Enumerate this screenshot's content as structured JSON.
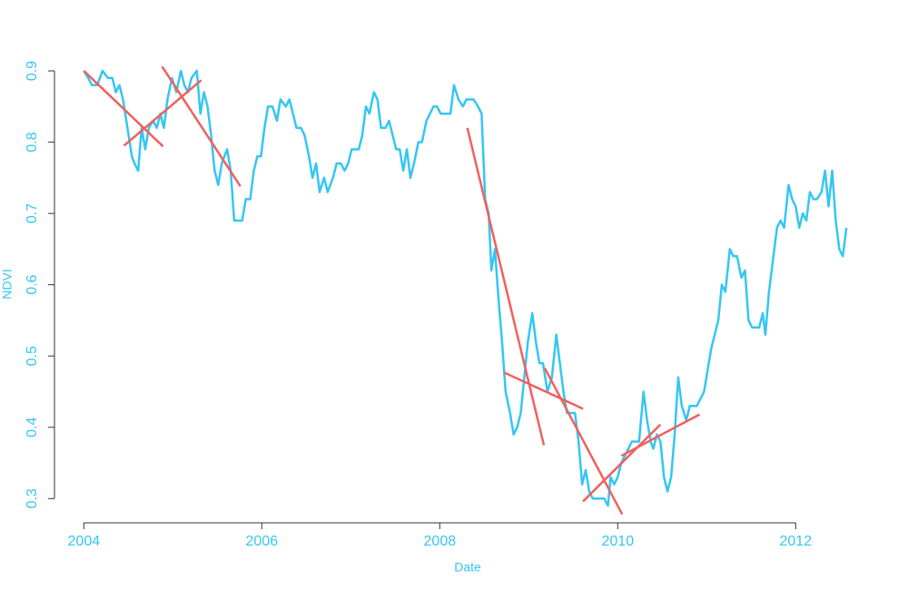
{
  "chart_data": {
    "type": "line",
    "x_label": "Date",
    "y_label": "NDVI",
    "xlim": [
      2003.67,
      2012.65
    ],
    "ylim": [
      0.266,
      0.923
    ],
    "xticks": [
      2004,
      2006,
      2008,
      2010,
      2012
    ],
    "yticks": [
      0.3,
      0.4,
      0.5,
      0.6,
      0.7,
      0.8,
      0.9
    ],
    "text_color": "#35c6f2",
    "series": [
      {
        "color": "#35c6f2",
        "x": [
          2004.0,
          2004.05,
          2004.09,
          2004.15,
          2004.21,
          2004.27,
          2004.32,
          2004.36,
          2004.4,
          2004.44,
          2004.49,
          2004.54,
          2004.57,
          2004.61,
          2004.65,
          2004.69,
          2004.73,
          2004.78,
          2004.82,
          2004.86,
          2004.9,
          2004.94,
          2004.99,
          2005.04,
          2005.09,
          2005.13,
          2005.17,
          2005.21,
          2005.27,
          2005.31,
          2005.35,
          2005.39,
          2005.43,
          2005.47,
          2005.51,
          2005.55,
          2005.61,
          2005.65,
          2005.69,
          2005.78,
          2005.82,
          2005.87,
          2005.91,
          2005.95,
          2005.99,
          2006.03,
          2006.07,
          2006.12,
          2006.17,
          2006.21,
          2006.27,
          2006.31,
          2006.35,
          2006.39,
          2006.44,
          2006.48,
          2006.53,
          2006.57,
          2006.61,
          2006.65,
          2006.7,
          2006.74,
          2006.8,
          2006.84,
          2006.89,
          2006.93,
          2006.97,
          2007.01,
          2007.09,
          2007.13,
          2007.17,
          2007.21,
          2007.26,
          2007.3,
          2007.34,
          2007.39,
          2007.43,
          2007.47,
          2007.51,
          2007.55,
          2007.59,
          2007.63,
          2007.67,
          2007.71,
          2007.76,
          2007.8,
          2007.85,
          2007.89,
          2007.93,
          2007.97,
          2008.01,
          2008.07,
          2008.12,
          2008.16,
          2008.21,
          2008.26,
          2008.3,
          2008.38,
          2008.43,
          2008.47,
          2008.51,
          2008.55,
          2008.58,
          2008.62,
          2008.66,
          2008.7,
          2008.74,
          2008.79,
          2008.83,
          2008.87,
          2008.91,
          2008.95,
          2008.99,
          2009.04,
          2009.08,
          2009.12,
          2009.16,
          2009.21,
          2009.26,
          2009.31,
          2009.35,
          2009.39,
          2009.43,
          2009.48,
          2009.52,
          2009.56,
          2009.6,
          2009.64,
          2009.68,
          2009.72,
          2009.81,
          2009.85,
          2009.89,
          2009.92,
          2009.96,
          2010.0,
          2010.04,
          2010.08,
          2010.12,
          2010.16,
          2010.24,
          2010.29,
          2010.33,
          2010.37,
          2010.4,
          2010.44,
          2010.48,
          2010.52,
          2010.56,
          2010.6,
          2010.64,
          2010.68,
          2010.72,
          2010.77,
          2010.81,
          2010.89,
          2010.93,
          2010.97,
          2011.01,
          2011.05,
          2011.09,
          2011.13,
          2011.17,
          2011.21,
          2011.26,
          2011.3,
          2011.34,
          2011.39,
          2011.43,
          2011.47,
          2011.51,
          2011.55,
          2011.59,
          2011.63,
          2011.66,
          2011.7,
          2011.74,
          2011.79,
          2011.83,
          2011.87,
          2011.92,
          2011.96,
          2012.0,
          2012.04,
          2012.08,
          2012.12,
          2012.16,
          2012.2,
          2012.24,
          2012.29,
          2012.33,
          2012.37,
          2012.41,
          2012.45,
          2012.49,
          2012.53,
          2012.57
        ],
        "values": [
          0.9,
          0.89,
          0.88,
          0.88,
          0.9,
          0.89,
          0.89,
          0.87,
          0.88,
          0.86,
          0.82,
          0.78,
          0.77,
          0.76,
          0.82,
          0.79,
          0.82,
          0.83,
          0.82,
          0.84,
          0.82,
          0.86,
          0.89,
          0.87,
          0.9,
          0.88,
          0.87,
          0.89,
          0.9,
          0.84,
          0.87,
          0.85,
          0.81,
          0.76,
          0.74,
          0.77,
          0.79,
          0.76,
          0.69,
          0.69,
          0.72,
          0.72,
          0.76,
          0.78,
          0.78,
          0.82,
          0.85,
          0.85,
          0.83,
          0.86,
          0.85,
          0.86,
          0.84,
          0.82,
          0.82,
          0.81,
          0.78,
          0.75,
          0.77,
          0.73,
          0.75,
          0.73,
          0.75,
          0.77,
          0.77,
          0.76,
          0.77,
          0.79,
          0.79,
          0.81,
          0.85,
          0.84,
          0.87,
          0.86,
          0.82,
          0.82,
          0.83,
          0.81,
          0.79,
          0.79,
          0.76,
          0.79,
          0.75,
          0.77,
          0.8,
          0.8,
          0.83,
          0.84,
          0.85,
          0.85,
          0.84,
          0.84,
          0.84,
          0.88,
          0.86,
          0.85,
          0.86,
          0.86,
          0.85,
          0.84,
          0.72,
          0.7,
          0.62,
          0.65,
          0.58,
          0.52,
          0.45,
          0.42,
          0.39,
          0.4,
          0.42,
          0.47,
          0.52,
          0.56,
          0.52,
          0.49,
          0.49,
          0.45,
          0.47,
          0.53,
          0.49,
          0.45,
          0.42,
          0.42,
          0.42,
          0.38,
          0.32,
          0.34,
          0.31,
          0.3,
          0.3,
          0.3,
          0.29,
          0.33,
          0.32,
          0.33,
          0.35,
          0.36,
          0.37,
          0.38,
          0.38,
          0.45,
          0.41,
          0.38,
          0.37,
          0.39,
          0.38,
          0.33,
          0.31,
          0.33,
          0.39,
          0.47,
          0.43,
          0.41,
          0.43,
          0.43,
          0.44,
          0.45,
          0.48,
          0.51,
          0.53,
          0.55,
          0.6,
          0.59,
          0.65,
          0.64,
          0.64,
          0.61,
          0.62,
          0.55,
          0.54,
          0.54,
          0.54,
          0.56,
          0.53,
          0.59,
          0.63,
          0.68,
          0.69,
          0.68,
          0.74,
          0.72,
          0.71,
          0.68,
          0.7,
          0.69,
          0.73,
          0.72,
          0.72,
          0.73,
          0.76,
          0.71,
          0.76,
          0.69,
          0.65,
          0.64,
          0.68
        ]
      },
      {
        "color": "#f0605e",
        "x": [
          2004.0,
          2004.89
        ],
        "values": [
          0.9,
          0.794
        ]
      },
      {
        "color": "#f0605e",
        "x": [
          2004.45,
          2005.32
        ],
        "values": [
          0.795,
          0.887
        ]
      },
      {
        "color": "#f0605e",
        "x": [
          2004.88,
          2005.76
        ],
        "values": [
          0.906,
          0.738
        ]
      },
      {
        "color": "#f0605e",
        "x": [
          2008.31,
          2009.17
        ],
        "values": [
          0.82,
          0.375
        ]
      },
      {
        "color": "#f0605e",
        "x": [
          2008.72,
          2009.61
        ],
        "values": [
          0.477,
          0.426
        ]
      },
      {
        "color": "#f0605e",
        "x": [
          2009.18,
          2010.05
        ],
        "values": [
          0.483,
          0.278
        ]
      },
      {
        "color": "#f0605e",
        "x": [
          2009.61,
          2010.48
        ],
        "values": [
          0.296,
          0.404
        ]
      },
      {
        "color": "#f0605e",
        "x": [
          2010.04,
          2010.92
        ],
        "values": [
          0.36,
          0.418
        ]
      }
    ]
  }
}
